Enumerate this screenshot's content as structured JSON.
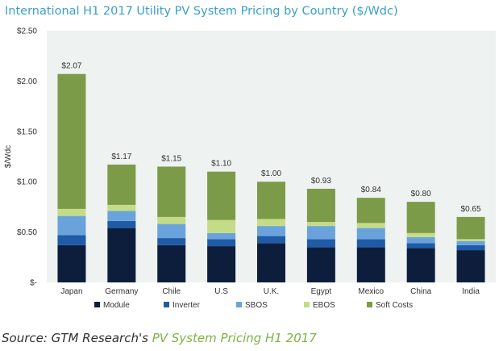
{
  "chart_data": {
    "type": "bar",
    "stacked": true,
    "title": "International H1 2017 Utility PV System Pricing by Country ($/Wdc)",
    "ylabel": "$/Wdc",
    "xlabel": "",
    "ylim": [
      0,
      2.5
    ],
    "yticks": [
      0,
      0.5,
      1.0,
      1.5,
      2.0,
      2.5
    ],
    "ytick_labels": [
      "$-",
      "$0.50",
      "$1.00",
      "$1.50",
      "$2.00",
      "$2.50"
    ],
    "grid": false,
    "legend_position": "bottom",
    "background": "#eef2f1",
    "categories": [
      "Japan",
      "Germany",
      "Chile",
      "U.S",
      "U.K.",
      "Egypt",
      "Mexico",
      "China",
      "India"
    ],
    "totals": [
      2.07,
      1.17,
      1.15,
      1.1,
      1.0,
      0.93,
      0.84,
      0.8,
      0.65
    ],
    "total_labels": [
      "$2.07",
      "$1.17",
      "$1.15",
      "$1.10",
      "$1.00",
      "$0.93",
      "$0.84",
      "$0.80",
      "$0.65"
    ],
    "series": [
      {
        "name": "Module",
        "color": "#0d1e3d",
        "values": [
          0.37,
          0.54,
          0.37,
          0.36,
          0.39,
          0.35,
          0.35,
          0.34,
          0.32
        ]
      },
      {
        "name": "Inverter",
        "color": "#1f5ba6",
        "values": [
          0.1,
          0.07,
          0.07,
          0.07,
          0.07,
          0.08,
          0.08,
          0.05,
          0.05
        ]
      },
      {
        "name": "SBOS",
        "color": "#6aa3dc",
        "values": [
          0.19,
          0.1,
          0.14,
          0.06,
          0.1,
          0.13,
          0.11,
          0.06,
          0.04
        ]
      },
      {
        "name": "EBOS",
        "color": "#c4dc87",
        "values": [
          0.07,
          0.06,
          0.07,
          0.13,
          0.07,
          0.04,
          0.05,
          0.04,
          0.02
        ]
      },
      {
        "name": "Soft Costs",
        "color": "#7c9b48",
        "values": [
          1.34,
          0.4,
          0.5,
          0.48,
          0.37,
          0.33,
          0.25,
          0.31,
          0.22
        ]
      }
    ]
  },
  "footer": {
    "source_prefix": "Source: GTM Research's ",
    "source_link": "PV System Pricing H1 2017"
  }
}
